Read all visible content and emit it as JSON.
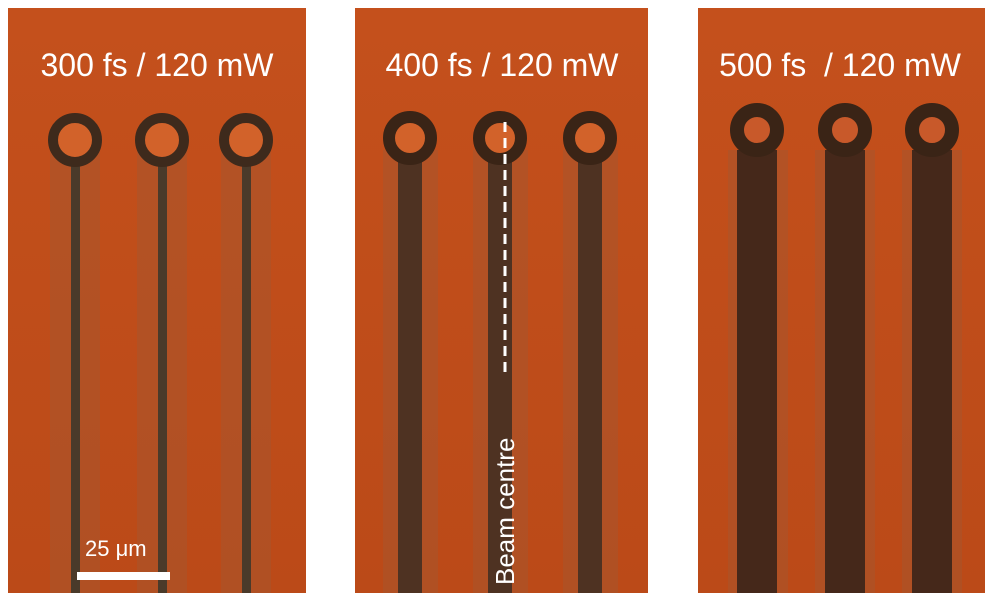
{
  "panels": [
    {
      "title": "300 fs / 120 mW"
    },
    {
      "title": "400 fs / 120 mW"
    },
    {
      "title": "500 fs  / 120 mW"
    }
  ],
  "scale_bar": {
    "label": "25 μm"
  },
  "annotation": {
    "label": "Beam centre"
  }
}
